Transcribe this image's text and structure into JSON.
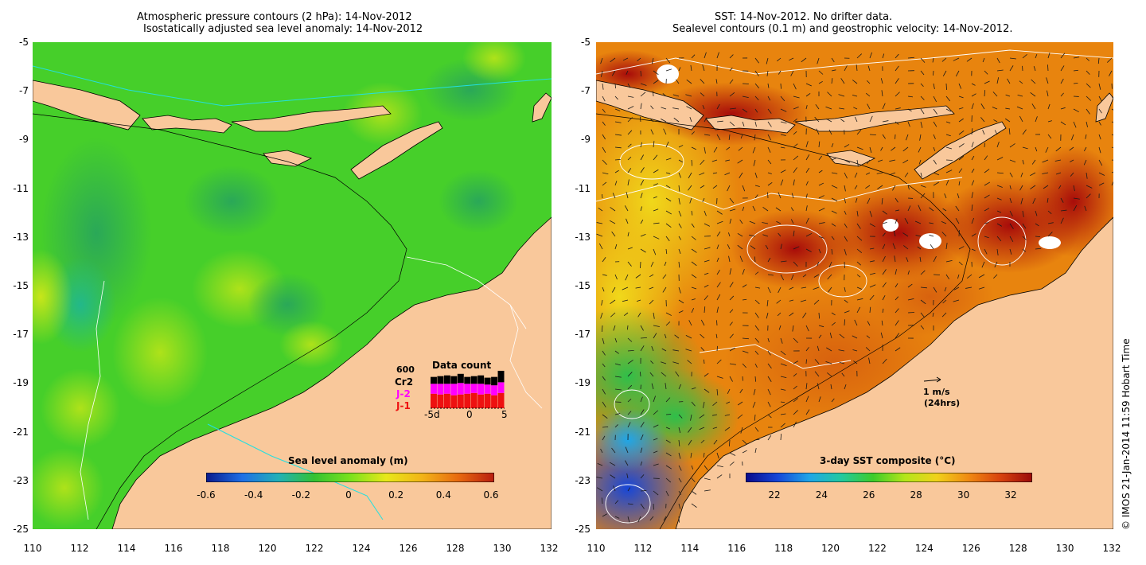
{
  "left_panel": {
    "title_line1": "Atmospheric pressure contours (2 hPa): 14-Nov-2012",
    "title_line2": "Isostatically adjusted sea level anomaly: 14-Nov-2012",
    "colorbar": {
      "title": "Sea level anomaly (m)",
      "ticks": [
        "-0.6",
        "-0.4",
        "-0.2",
        "0",
        "0.2",
        "0.4",
        "0.6"
      ],
      "colors": [
        "#0a1a8c",
        "#1f6fe6",
        "#22b0b8",
        "#33c233",
        "#7ae21c",
        "#e8e81a",
        "#f2b418",
        "#e86a10",
        "#b81d10"
      ]
    },
    "data_count": {
      "title": "Data count",
      "max_label": "600",
      "legend": [
        {
          "label": "Cr2",
          "color": "#000000"
        },
        {
          "label": "J-2",
          "color": "#ff00ff"
        },
        {
          "label": "J-1",
          "color": "#ee1111"
        }
      ],
      "x_ticks": [
        "-5d",
        "0",
        "5"
      ],
      "bars": [
        {
          "j1": 0.38,
          "j2": 0.26,
          "cr2": 0.18
        },
        {
          "j1": 0.36,
          "j2": 0.28,
          "cr2": 0.2
        },
        {
          "j1": 0.38,
          "j2": 0.26,
          "cr2": 0.22
        },
        {
          "j1": 0.34,
          "j2": 0.3,
          "cr2": 0.2
        },
        {
          "j1": 0.36,
          "j2": 0.3,
          "cr2": 0.24
        },
        {
          "j1": 0.38,
          "j2": 0.26,
          "cr2": 0.18
        },
        {
          "j1": 0.4,
          "j2": 0.24,
          "cr2": 0.2
        },
        {
          "j1": 0.36,
          "j2": 0.28,
          "cr2": 0.22
        },
        {
          "j1": 0.38,
          "j2": 0.24,
          "cr2": 0.18
        },
        {
          "j1": 0.34,
          "j2": 0.26,
          "cr2": 0.22
        },
        {
          "j1": 0.4,
          "j2": 0.28,
          "cr2": 0.3
        }
      ]
    }
  },
  "right_panel": {
    "title_line1": "SST: 14-Nov-2012. No drifter data.",
    "title_line2": "Sealevel contours (0.1 m) and geostrophic velocity: 14-Nov-2012.",
    "colorbar": {
      "title": "3-day SST composite (°C)",
      "ticks": [
        "22",
        "24",
        "26",
        "28",
        "30",
        "32"
      ],
      "colors": [
        "#0a0a8a",
        "#1646d8",
        "#1fa6e8",
        "#22c9a0",
        "#3dcc2a",
        "#b4e61a",
        "#f0d21a",
        "#f08a12",
        "#d8420e",
        "#9a0a0a"
      ]
    },
    "velocity_scale": {
      "line1": "1 m/s",
      "line2": "(24hrs)"
    }
  },
  "axes": {
    "lat_labels": [
      "-5",
      "-7",
      "-9",
      "-11",
      "-13",
      "-15",
      "-17",
      "-19",
      "-21",
      "-23",
      "-25"
    ],
    "lon_labels": [
      "110",
      "112",
      "114",
      "116",
      "118",
      "120",
      "122",
      "124",
      "126",
      "128",
      "130",
      "132"
    ]
  },
  "credit": "© IMOS 21-Jan-2014 11:59 Hobart Time",
  "colors": {
    "land": "#f9c89b",
    "ocean_base": "#3fcd28",
    "sst_base": "#e8820e",
    "grey_land": "#f9c89b"
  }
}
